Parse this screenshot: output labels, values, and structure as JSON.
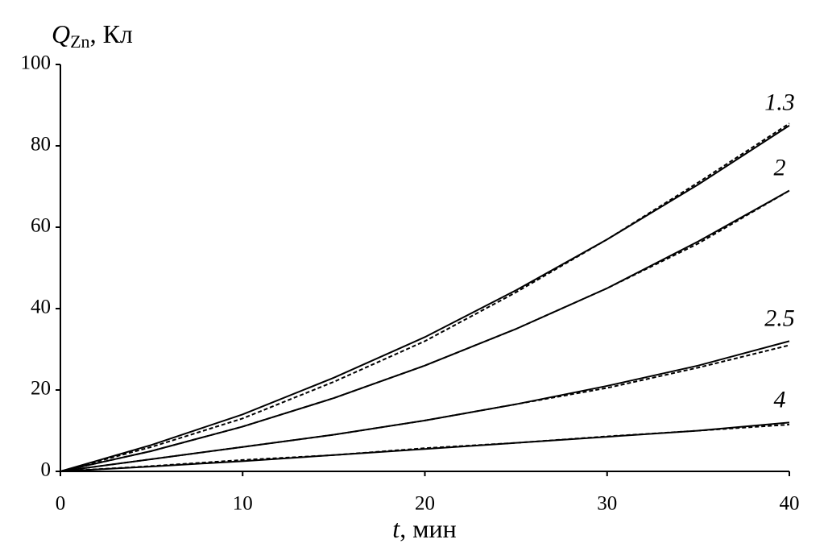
{
  "chart_data": {
    "type": "line",
    "y_label": {
      "symbol": "Q",
      "subscript": "Zn",
      "unit": ", Кл"
    },
    "x_label": {
      "symbol": "t",
      "unit": ", мин"
    },
    "x": [
      0,
      5,
      10,
      15,
      20,
      25,
      30,
      35,
      40
    ],
    "series": [
      {
        "name": "1.3",
        "color": "#000",
        "values": [
          0,
          6.5,
          14,
          23,
          33,
          44.5,
          57,
          70.5,
          85
        ],
        "measured": [
          0,
          6,
          13,
          22,
          32,
          44,
          57,
          71,
          85.5
        ]
      },
      {
        "name": "2",
        "color": "#000",
        "values": [
          0,
          5,
          11,
          18,
          26,
          35,
          45,
          56.5,
          69
        ],
        "measured": [
          0,
          5,
          11,
          18,
          26,
          35,
          45,
          56,
          69
        ]
      },
      {
        "name": "2.5",
        "color": "#000",
        "values": [
          0,
          3,
          6,
          9,
          12.5,
          16.5,
          21,
          26,
          32
        ],
        "measured": [
          0,
          3,
          6,
          9,
          12.5,
          16.5,
          20.5,
          25.5,
          31
        ]
      },
      {
        "name": "4",
        "color": "#000",
        "values": [
          0,
          1.2,
          2.5,
          4,
          5.5,
          7,
          8.5,
          10,
          12
        ],
        "measured": [
          0,
          1.3,
          2.8,
          4,
          5.7,
          7,
          8.6,
          10,
          11.5
        ]
      }
    ],
    "xlim": [
      0,
      40
    ],
    "xticks": [
      0,
      10,
      20,
      30,
      40
    ],
    "ylim": [
      0,
      100
    ],
    "yticks": [
      0,
      20,
      40,
      60,
      80,
      100
    ],
    "grid": false
  }
}
